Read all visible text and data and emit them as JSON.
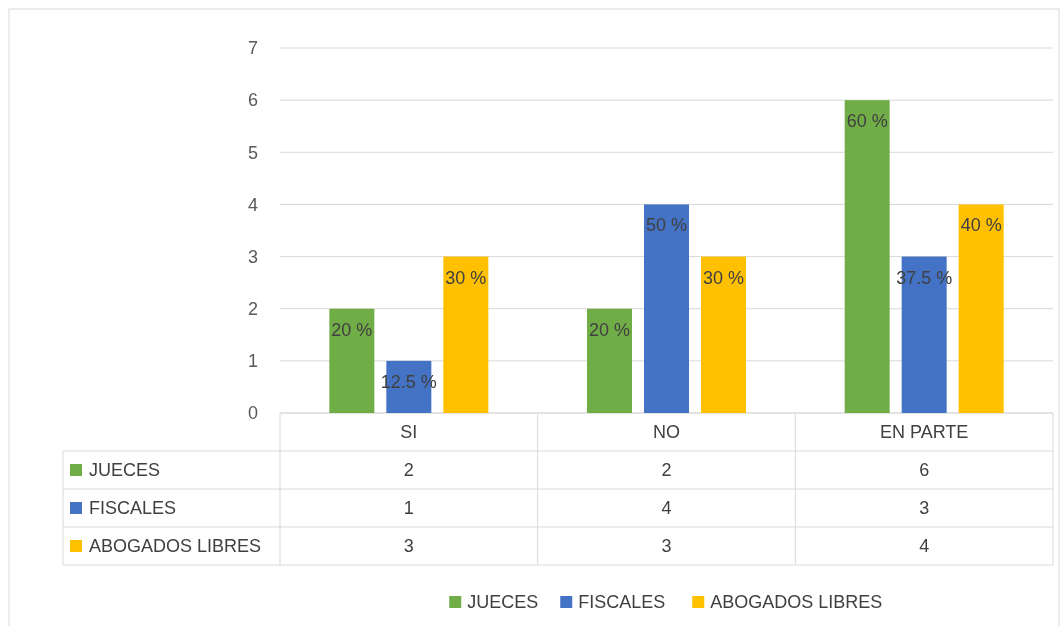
{
  "chart_data": {
    "type": "bar",
    "categories": [
      "SI",
      "NO",
      "EN PARTE"
    ],
    "series": [
      {
        "name": "JUECES",
        "color": "#70ad47",
        "values": [
          2,
          2,
          6
        ]
      },
      {
        "name": "FISCALES",
        "color": "#4472c4",
        "values": [
          1,
          4,
          3
        ]
      },
      {
        "name": "ABOGADOS LIBRES",
        "color": "#ffc000",
        "values": [
          3,
          3,
          4
        ]
      }
    ],
    "annotations": [
      "20 %",
      "12.5 %",
      "30 %",
      "20 %",
      "50 %",
      "30 %",
      "60 %",
      "37.5 %",
      "40 %"
    ],
    "ylim": [
      0,
      7
    ],
    "yticks": [
      0,
      1,
      2,
      3,
      4,
      5,
      6,
      7
    ],
    "grid": "y",
    "legend": "bottom",
    "data_labels": true
  }
}
